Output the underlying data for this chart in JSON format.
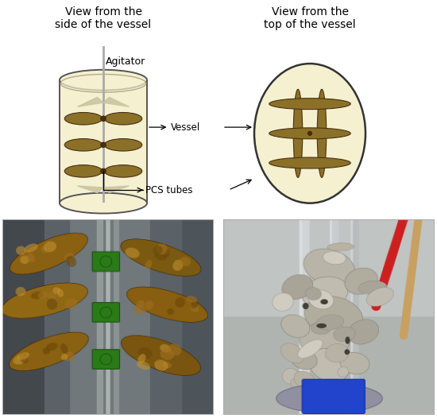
{
  "bg_color": "#ffffff",
  "vessel_fill": "#f5f0d0",
  "tube_color": "#8B7028",
  "shaft_color": "#aaaaaa",
  "cyl_border": "#555555",
  "title_left": "View from the\nside of the vessel",
  "title_right": "View from the\ntop of the vessel",
  "label_agitator": "Agitator",
  "label_vessel": "Vessel",
  "label_pcs": "PCS tubes",
  "diagram_text_fontsize": 9,
  "title_fontsize": 10,
  "impeller_color": "#c8c4a0",
  "photo_border_color": "#aaaaaa",
  "left_photo_bg": "#6a7070",
  "left_photo_metal": "#909898",
  "left_photo_green": "#2d7a20",
  "left_photo_tube": "#8B6010",
  "right_photo_bg": "#b0b8b8",
  "right_photo_biofilm": "#a8a090",
  "right_photo_shaft": "#c0c8c8",
  "right_photo_blue": "#2255bb"
}
